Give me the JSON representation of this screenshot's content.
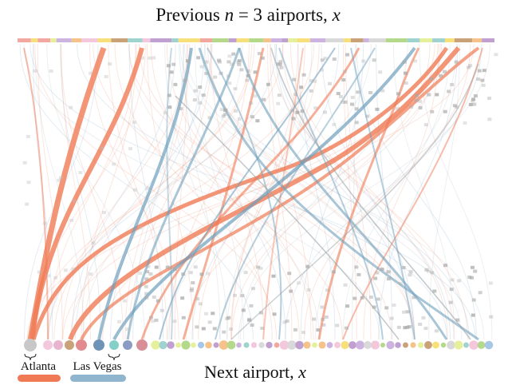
{
  "title": {
    "text1": "Previous",
    "var": "n",
    "text2": "= 3 airports,",
    "vec": "x⃗"
  },
  "xlabel": {
    "text": "Next airport,",
    "var": "x"
  },
  "legend": [
    {
      "label": "Atlanta"
    },
    {
      "label": "Las Vegas"
    }
  ]
}
